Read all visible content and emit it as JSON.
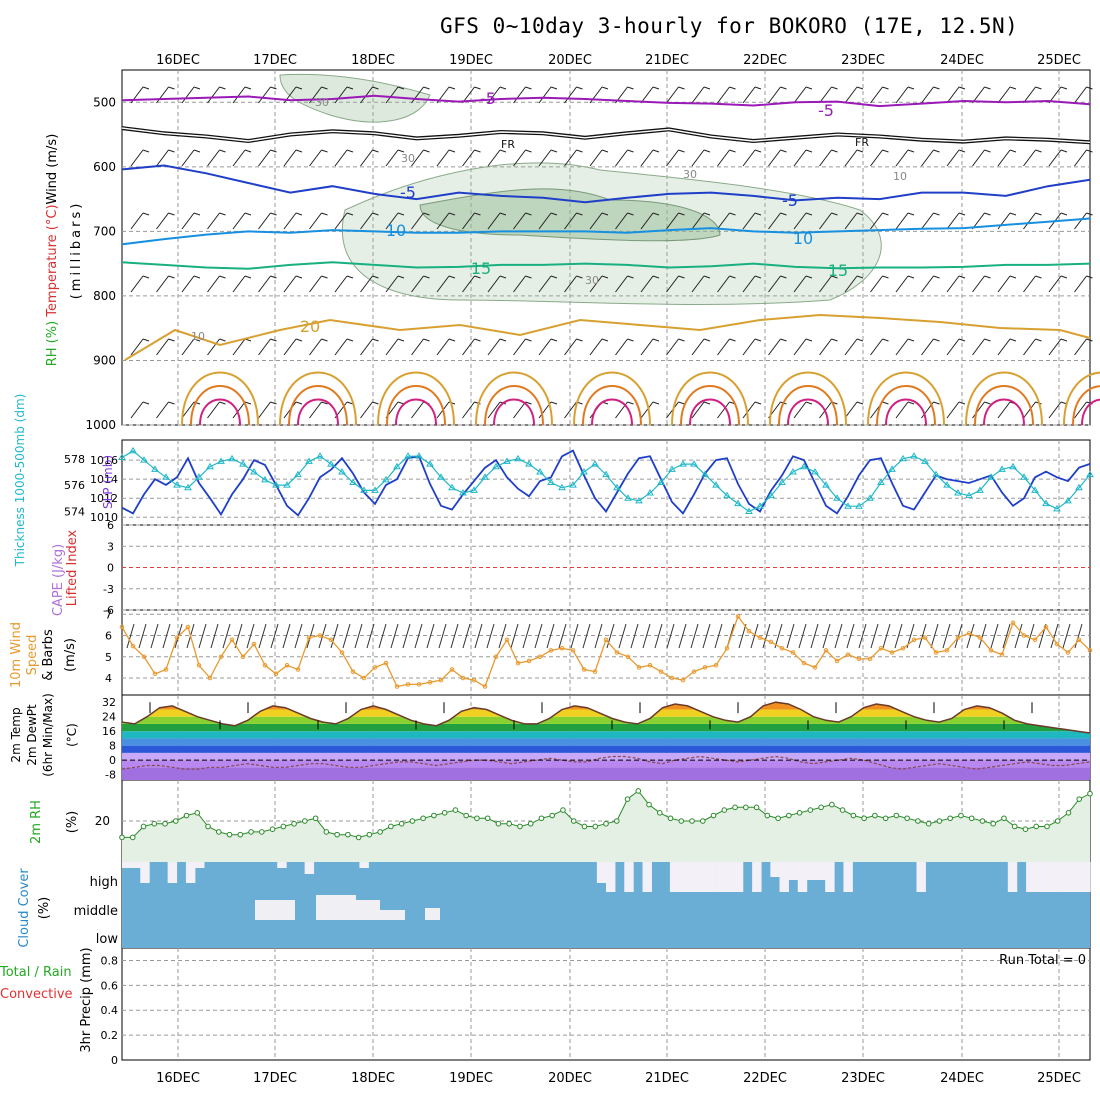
{
  "title": "GFS 0~10day 3-hourly for BOKORO (17E, 12.5N)",
  "run_total_label": "Run Total = 0",
  "colors": {
    "grid": "#9a9a9a",
    "rh_shade": "#8fb58f",
    "sf_temp_hot": "#e85a10",
    "slp_line": "#1f3fc8",
    "thickness_line": "#20b8c8",
    "wind_speed": "#e89a30",
    "cloud": "#6aaed6",
    "rh2m": "#2a8a2a"
  },
  "chart_data": [
    {
      "panel": "upper-air",
      "type": "line",
      "xlabels": [
        "16DEC",
        "17DEC",
        "18DEC",
        "19DEC",
        "20DEC",
        "21DEC",
        "22DEC",
        "23DEC",
        "24DEC",
        "25DEC"
      ],
      "ylabel_parts": [
        "Wind (m/s)",
        "Temperature (°C)",
        "RH (%)",
        "(millibars)"
      ],
      "y_ticks": [
        500,
        600,
        700,
        800,
        900,
        1000
      ],
      "ylim": [
        1000,
        450
      ],
      "isotherm_labels": [
        "-5",
        "-5",
        "FR",
        "FR",
        "-5",
        "-5",
        "10",
        "10",
        "15",
        "15",
        "20",
        "10",
        "30",
        "30",
        "30",
        "10",
        "30"
      ],
      "isotherms": [
        {
          "label": "-5",
          "color": "#9a1ab8",
          "values": [
            497,
            495,
            493,
            491,
            497,
            495,
            490,
            495,
            499,
            495,
            493,
            495,
            498,
            501,
            502,
            505,
            500,
            499,
            506,
            502,
            498,
            500,
            498,
            503
          ]
        },
        {
          "label": "FR",
          "color": "#111111",
          "values": [
            540,
            548,
            553,
            560,
            550,
            545,
            548,
            556,
            552,
            546,
            548,
            555,
            548,
            542,
            553,
            560,
            555,
            550,
            553,
            558,
            561,
            556,
            558,
            562
          ]
        },
        {
          "label": "-5 (lower)",
          "color": "#1f3fc8",
          "values": [
            604,
            598,
            610,
            625,
            640,
            630,
            642,
            650,
            640,
            645,
            648,
            655,
            648,
            642,
            640,
            645,
            652,
            648,
            650,
            640,
            640,
            645,
            630,
            620
          ]
        },
        {
          "label": "10",
          "color": "#1890e0",
          "values": [
            720,
            712,
            705,
            700,
            702,
            698,
            700,
            702,
            702,
            700,
            700,
            700,
            702,
            698,
            695,
            700,
            702,
            700,
            698,
            696,
            695,
            690,
            685,
            680
          ]
        },
        {
          "label": "15",
          "color": "#18b080",
          "values": [
            748,
            752,
            756,
            758,
            752,
            748,
            752,
            756,
            755,
            752,
            752,
            750,
            752,
            756,
            754,
            750,
            755,
            757,
            756,
            756,
            755,
            752,
            752,
            750
          ]
        }
      ]
    },
    {
      "panel": "slp-thickness",
      "type": "line",
      "ylabel_left": "Thickness 1000-500mb (dm)",
      "ylabel_right": "SLP (mb)",
      "left_ticks": [
        574,
        576,
        578
      ],
      "right_ticks": [
        1010,
        1012,
        1014,
        1016
      ],
      "series": [
        {
          "name": "SLP",
          "color": "#1f3fc8",
          "axis": "slp",
          "values": [
            1011.0,
            1010.4,
            1012.4,
            1014.0,
            1013.4,
            1014.2,
            1016.2,
            1013.6,
            1012.0,
            1010.3,
            1012.4,
            1014.0,
            1016.0,
            1015.5,
            1013.4,
            1011.2,
            1010.2,
            1012.0,
            1014.2,
            1015.0,
            1016.2,
            1014.6,
            1012.6,
            1011.4,
            1013.4,
            1014.0,
            1016.2,
            1016.4,
            1013.5,
            1011.2,
            1010.8,
            1012.4,
            1013.8,
            1015.2,
            1016.0,
            1014.2,
            1013.0,
            1012.2,
            1013.8,
            1014.2,
            1016.4,
            1017.0,
            1014.4,
            1012.0,
            1010.6,
            1012.6,
            1014.6,
            1016.2,
            1016.4,
            1014.0,
            1011.6,
            1010.4,
            1012.4,
            1014.6,
            1016.0,
            1016.2,
            1013.5,
            1011.4,
            1010.6,
            1012.8,
            1014.4,
            1016.4,
            1016.0,
            1013.6,
            1011.2,
            1010.4,
            1012.2,
            1014.4,
            1016.0,
            1016.2,
            1013.6,
            1011.2,
            1010.8,
            1012.6,
            1014.4,
            1014.0,
            1013.8,
            1013.6,
            1014.0,
            1014.4,
            1012.6,
            1011.2,
            1012.0,
            1014.2,
            1014.8,
            1014.2,
            1013.8,
            1015.2,
            1015.6
          ]
        },
        {
          "name": "Thickness",
          "color": "#20b8c8",
          "axis": "thk",
          "values": [
            578.1,
            578.6,
            577.9,
            577.2,
            576.6,
            576.0,
            575.8,
            576.6,
            577.4,
            577.8,
            578.0,
            577.6,
            577.0,
            576.4,
            576.0,
            576.0,
            576.8,
            577.8,
            578.2,
            577.6,
            577.0,
            576.2,
            575.6,
            575.6,
            576.4,
            577.4,
            578.2,
            578.2,
            577.6,
            576.6,
            575.8,
            575.4,
            575.6,
            576.6,
            577.4,
            577.8,
            578.0,
            577.6,
            577.0,
            576.2,
            575.8,
            576.0,
            577.0,
            577.6,
            576.8,
            575.8,
            575.0,
            574.8,
            575.4,
            576.2,
            577.2,
            577.6,
            577.6,
            576.8,
            576.0,
            575.2,
            574.6,
            574.0,
            574.4,
            575.2,
            576.2,
            577.0,
            577.4,
            577.0,
            576.0,
            575.0,
            574.4,
            574.4,
            575.0,
            576.2,
            577.2,
            578.0,
            578.2,
            577.8,
            576.8,
            576.0,
            575.4,
            575.2,
            575.6,
            576.6,
            577.2,
            577.4,
            576.6,
            575.6,
            574.6,
            574.2,
            574.8,
            575.8,
            576.8
          ]
        }
      ]
    },
    {
      "panel": "lifted-index",
      "type": "line",
      "ylabel_left": "Lifted Index",
      "ylabel_right": "CAPE (J/kg)",
      "left_ticks": [
        "6",
        "3",
        "0",
        "-3",
        "-6"
      ],
      "values": []
    },
    {
      "panel": "wind-10m",
      "type": "line",
      "ylabel_parts": [
        "10m Wind",
        "Speed",
        "& Barbs",
        "(m/s)"
      ],
      "y_ticks": [
        4,
        5,
        6,
        7
      ],
      "ylim": [
        3.2,
        7.2
      ],
      "series": [
        {
          "name": "Wind speed",
          "color": "#e89a30",
          "values": [
            6.4,
            5.5,
            5.0,
            4.2,
            4.4,
            5.9,
            6.4,
            4.6,
            4.0,
            5.0,
            5.8,
            5.0,
            5.6,
            4.6,
            4.2,
            4.6,
            4.4,
            5.9,
            6.0,
            5.8,
            5.2,
            4.3,
            4.0,
            4.5,
            4.7,
            3.6,
            3.7,
            3.7,
            3.8,
            3.9,
            4.4,
            4.0,
            3.9,
            3.6,
            5.0,
            5.8,
            4.7,
            4.8,
            5.0,
            5.3,
            5.4,
            5.3,
            4.4,
            4.3,
            5.8,
            5.2,
            5.0,
            4.5,
            4.6,
            4.3,
            4.0,
            3.9,
            4.3,
            4.5,
            4.6,
            5.4,
            6.9,
            6.2,
            5.9,
            5.7,
            5.4,
            5.2,
            4.7,
            4.5,
            5.3,
            4.8,
            5.1,
            4.9,
            4.9,
            5.4,
            5.2,
            5.4,
            5.8,
            5.9,
            5.2,
            5.3,
            5.9,
            6.1,
            5.9,
            5.3,
            5.1,
            6.6,
            6.0,
            5.8,
            6.4,
            5.6,
            5.2,
            5.8,
            5.3
          ]
        }
      ]
    },
    {
      "panel": "temp-2m",
      "type": "area",
      "ylabel_parts": [
        "2m Temp",
        "2m DewPt",
        "(6hr Min/Max)",
        "(°C)"
      ],
      "y_ticks": [
        -8,
        0,
        8,
        16,
        24,
        32
      ],
      "ylim": [
        -11,
        36
      ],
      "temperature": [
        21,
        20,
        24,
        29,
        30,
        27,
        24,
        22,
        20,
        19,
        22,
        27,
        30,
        29,
        26,
        23,
        21,
        20,
        23,
        28,
        30,
        28,
        25,
        22,
        20,
        19,
        22,
        27,
        29,
        28,
        25,
        22,
        20,
        20,
        23,
        28,
        30,
        29,
        26,
        23,
        21,
        20,
        23,
        29,
        31,
        30,
        27,
        24,
        22,
        21,
        24,
        30,
        32,
        31,
        28,
        24,
        22,
        21,
        24,
        29,
        31,
        30,
        27,
        24,
        22,
        21,
        23,
        28,
        30,
        29,
        26,
        22,
        20,
        19,
        18,
        17,
        16,
        15
      ],
      "dewpoint": [
        -5,
        -4,
        -3,
        -3,
        -4,
        -5,
        -5,
        -4,
        -4,
        -3,
        -2,
        -3,
        -4,
        -4,
        -3,
        -2,
        -2,
        -3,
        -4,
        -4,
        -3,
        -2,
        -1,
        -1,
        -2,
        -3,
        -2,
        -1,
        0,
        0,
        -1,
        -2,
        -1,
        0,
        1,
        0,
        -1,
        -1,
        1,
        2,
        2,
        1,
        -1,
        -2,
        0,
        1,
        2,
        1,
        0,
        -1,
        0,
        1,
        2,
        1,
        -1,
        -2,
        -1,
        0,
        1,
        0,
        -2,
        -4,
        -5,
        -4,
        -3,
        -2,
        -3,
        -4,
        -5,
        -4,
        -3,
        -2,
        -1,
        -2,
        -3,
        -3,
        -2,
        -1
      ]
    },
    {
      "panel": "rh-2m",
      "type": "area",
      "ylabel_parts": [
        "2m RH",
        "(%)"
      ],
      "y_ticks": [
        20
      ],
      "ylim": [
        5,
        35
      ],
      "values": [
        14,
        14,
        18,
        19,
        19,
        20,
        22,
        23,
        18,
        16,
        15,
        15,
        16,
        16,
        17,
        18,
        19,
        20,
        21,
        16,
        15,
        15,
        14,
        15,
        16,
        18,
        19,
        20,
        21,
        22,
        23,
        24,
        22,
        21,
        21,
        19,
        19,
        18,
        19,
        21,
        22,
        24,
        20,
        18,
        18,
        19,
        20,
        28,
        31,
        26,
        23,
        21,
        20,
        20,
        20,
        22,
        24,
        25,
        25,
        25,
        22,
        21,
        22,
        23,
        24,
        25,
        26,
        24,
        22,
        21,
        22,
        21,
        22,
        21,
        20,
        19,
        20,
        21,
        22,
        21,
        20,
        19,
        21,
        18,
        17,
        18,
        18,
        20,
        23,
        28,
        30
      ]
    },
    {
      "panel": "cloud-cover",
      "type": "bar",
      "ylabel_parts": [
        "Cloud Cover",
        "(%)"
      ],
      "levels": [
        "high",
        "middle",
        "low"
      ],
      "high": [
        80,
        80,
        30,
        100,
        100,
        30,
        100,
        30,
        80,
        100,
        100,
        100,
        100,
        100,
        100,
        100,
        100,
        80,
        100,
        100,
        60,
        100,
        100,
        100,
        100,
        100,
        80,
        100,
        100,
        100,
        100,
        100,
        100,
        100,
        100,
        100,
        100,
        100,
        100,
        100,
        100,
        100,
        100,
        100,
        100,
        100,
        100,
        100,
        100,
        100,
        100,
        100,
        30,
        0,
        100,
        0,
        100,
        0,
        100,
        100,
        0,
        0,
        0,
        0,
        0,
        0,
        0,
        0,
        100,
        0,
        100,
        50,
        0,
        40,
        0,
        40,
        40,
        0,
        100,
        0,
        100,
        100,
        100,
        100,
        100,
        100,
        100,
        0,
        100,
        100,
        100,
        100,
        100,
        100,
        100,
        100,
        100,
        0,
        100,
        0,
        0,
        0,
        0,
        0,
        0,
        0
      ],
      "middle": [
        0,
        0,
        0,
        0,
        0,
        0,
        0,
        0,
        0,
        0,
        0,
        0,
        0,
        0,
        0,
        0,
        0,
        0,
        0,
        0,
        0,
        0,
        0,
        0,
        0,
        0,
        0,
        0,
        0,
        0,
        0,
        0,
        0,
        0,
        0,
        0,
        0,
        0,
        0,
        0,
        0,
        0,
        0,
        0,
        0,
        0,
        0,
        0,
        0,
        0,
        0,
        0,
        0,
        0,
        0,
        0,
        0,
        0,
        0,
        0,
        0,
        0,
        0,
        0,
        0,
        0,
        0,
        0,
        0,
        0,
        0,
        0,
        0,
        0,
        0,
        0,
        0,
        0,
        0,
        0,
        0,
        0,
        0,
        0,
        0,
        0,
        0,
        0,
        0,
        0,
        0,
        0,
        0,
        0,
        0,
        0,
        0,
        0,
        0,
        0,
        0,
        0,
        0,
        0,
        0,
        0
      ],
      "low": [
        0,
        0,
        0,
        0,
        0,
        0,
        0,
        0,
        0,
        0,
        0,
        0,
        0,
        0,
        0,
        0,
        0,
        0,
        0,
        0,
        0,
        0,
        0,
        0,
        0,
        0,
        0,
        0,
        0,
        0,
        0,
        0,
        0,
        0,
        0,
        0,
        0,
        0,
        0,
        0,
        0,
        0,
        0,
        0,
        0,
        0,
        0,
        0,
        0,
        0,
        0,
        0,
        0,
        0,
        0,
        0,
        0,
        0,
        0,
        0,
        0,
        0,
        0,
        0,
        0,
        0,
        0,
        0,
        0,
        0,
        0,
        0,
        0,
        0,
        0,
        0,
        0,
        0,
        0,
        0,
        0,
        0,
        0,
        0,
        0,
        0,
        0,
        0,
        0,
        0,
        0,
        0,
        0,
        0,
        0,
        0,
        0,
        0,
        0,
        0,
        0,
        0,
        0,
        0,
        0,
        0
      ]
    },
    {
      "panel": "precip-3hr",
      "type": "bar",
      "ylabel_parts": [
        "Total / Rain",
        "Convective",
        "3hr Precip (mm)"
      ],
      "y_ticks": [
        "0",
        "0.2",
        "0.4",
        "0.6",
        "0.8"
      ],
      "ylim": [
        0,
        0.9
      ],
      "values": []
    }
  ]
}
